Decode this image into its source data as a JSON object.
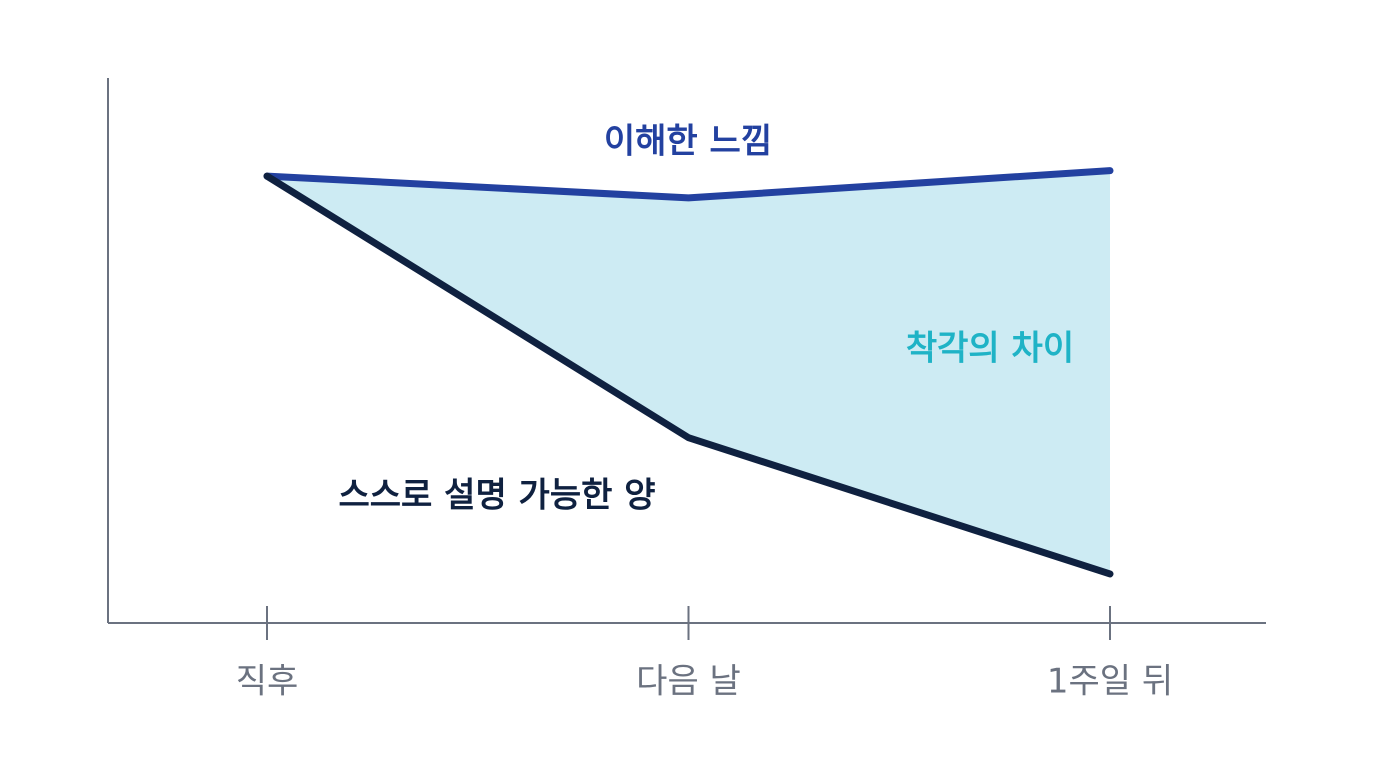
{
  "chart_data": {
    "type": "line",
    "categories": [
      "직후",
      "다음 날",
      "1주일 뒤"
    ],
    "series": [
      {
        "name": "이해한 느낌",
        "color": "#2341a0",
        "values": [
          82,
          78,
          83
        ]
      },
      {
        "name": "스스로 설명 가능한 양",
        "color": "#0f2140",
        "values": [
          82,
          34,
          9
        ]
      }
    ],
    "annotation": "착각의 차이",
    "annotation_color": "#1fb3c6",
    "fill_color": "#cdebf3",
    "ylim": [
      0,
      100
    ]
  }
}
